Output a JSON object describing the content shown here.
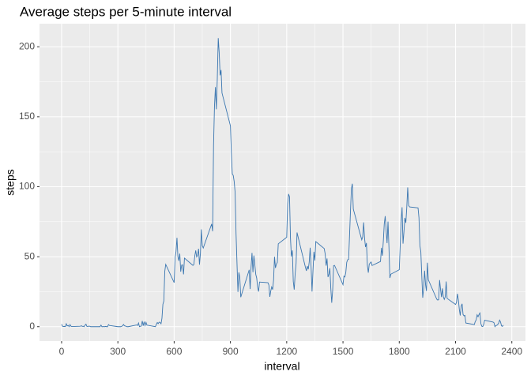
{
  "chart_data": {
    "type": "line",
    "title": "Average steps per 5-minute interval",
    "x_label": "interval",
    "y_label": "steps",
    "x": [
      0,
      5,
      10,
      15,
      20,
      25,
      30,
      35,
      40,
      45,
      50,
      55,
      100,
      105,
      110,
      115,
      120,
      125,
      130,
      135,
      140,
      145,
      150,
      155,
      200,
      205,
      210,
      215,
      220,
      225,
      230,
      235,
      240,
      245,
      250,
      255,
      300,
      305,
      310,
      315,
      320,
      325,
      330,
      335,
      340,
      345,
      350,
      355,
      400,
      405,
      410,
      415,
      420,
      425,
      430,
      435,
      440,
      445,
      450,
      455,
      500,
      505,
      510,
      515,
      520,
      525,
      530,
      535,
      540,
      545,
      550,
      555,
      600,
      605,
      610,
      615,
      620,
      625,
      630,
      635,
      640,
      645,
      650,
      655,
      700,
      705,
      710,
      715,
      720,
      725,
      730,
      735,
      740,
      745,
      750,
      755,
      800,
      805,
      810,
      815,
      820,
      825,
      830,
      835,
      840,
      845,
      850,
      855,
      900,
      905,
      910,
      915,
      920,
      925,
      930,
      935,
      940,
      945,
      950,
      955,
      1000,
      1005,
      1010,
      1015,
      1020,
      1025,
      1030,
      1035,
      1040,
      1045,
      1050,
      1055,
      1100,
      1105,
      1110,
      1115,
      1120,
      1125,
      1130,
      1135,
      1140,
      1145,
      1150,
      1155,
      1200,
      1205,
      1210,
      1215,
      1220,
      1225,
      1230,
      1235,
      1240,
      1245,
      1250,
      1255,
      1300,
      1305,
      1310,
      1315,
      1320,
      1325,
      1330,
      1335,
      1340,
      1345,
      1350,
      1355,
      1400,
      1405,
      1410,
      1415,
      1420,
      1425,
      1430,
      1435,
      1440,
      1445,
      1450,
      1455,
      1500,
      1505,
      1510,
      1515,
      1520,
      1525,
      1530,
      1535,
      1540,
      1545,
      1550,
      1555,
      1600,
      1605,
      1610,
      1615,
      1620,
      1625,
      1630,
      1635,
      1640,
      1645,
      1650,
      1655,
      1700,
      1705,
      1710,
      1715,
      1720,
      1725,
      1730,
      1735,
      1740,
      1745,
      1750,
      1755,
      1800,
      1805,
      1810,
      1815,
      1820,
      1825,
      1830,
      1835,
      1840,
      1845,
      1850,
      1855,
      1900,
      1905,
      1910,
      1915,
      1920,
      1925,
      1930,
      1935,
      1940,
      1945,
      1950,
      1955,
      2000,
      2005,
      2010,
      2015,
      2020,
      2025,
      2030,
      2035,
      2040,
      2045,
      2050,
      2055,
      2100,
      2105,
      2110,
      2115,
      2120,
      2125,
      2130,
      2135,
      2140,
      2145,
      2150,
      2155,
      2200,
      2205,
      2210,
      2215,
      2220,
      2225,
      2230,
      2235,
      2240,
      2245,
      2250,
      2255,
      2300,
      2305,
      2310,
      2315,
      2320,
      2325,
      2330,
      2335,
      2340,
      2345,
      2350,
      2355
    ],
    "series": [
      {
        "color": "#3a76b0",
        "values": [
          1.7,
          0.3,
          0.1,
          0.2,
          0.1,
          2.1,
          0.5,
          0.9,
          0,
          1.5,
          0.3,
          0.1,
          0.3,
          0.7,
          0.2,
          0.3,
          0,
          1.1,
          1.8,
          0.2,
          0.2,
          0.4,
          0.3,
          0,
          0,
          0,
          1.1,
          0,
          0,
          0.1,
          0,
          0.2,
          0,
          0,
          1.5,
          0.9,
          0,
          0,
          0,
          0,
          0.2,
          0.6,
          1.6,
          0.6,
          0.5,
          0.1,
          0,
          0,
          1.2,
          0.9,
          2.6,
          0,
          0.3,
          0.4,
          4.1,
          0.7,
          3.5,
          0.8,
          3.1,
          1.1,
          0,
          1.6,
          3,
          2.2,
          3.3,
          3,
          2.1,
          6.1,
          16,
          18.3,
          39.5,
          44.5,
          31.5,
          49.3,
          53.8,
          63.5,
          50,
          47.1,
          52.2,
          39.3,
          44,
          44.2,
          37.4,
          49,
          43.8,
          44.4,
          50.5,
          54.5,
          49.9,
          51,
          55.7,
          44.3,
          52.3,
          69.5,
          57.8,
          56.2,
          73.4,
          68.2,
          129.4,
          157.5,
          171.2,
          155.4,
          177.3,
          206.2,
          195.9,
          179.6,
          183.4,
          167,
          143.5,
          124,
          109.1,
          108.1,
          103.7,
          95.9,
          66.2,
          45.2,
          24.8,
          38.8,
          35,
          21.1,
          40.6,
          26.9,
          42.4,
          52.7,
          38.9,
          50.8,
          44.3,
          37.4,
          34.7,
          28.3,
          25.1,
          31.9,
          31.4,
          29.7,
          21.3,
          25.5,
          28.4,
          26.5,
          33.4,
          50,
          42,
          44.6,
          46,
          59.2,
          63.9,
          87.7,
          94.8,
          92.8,
          63.4,
          50.2,
          54.5,
          32.4,
          26.5,
          37.7,
          45.1,
          67.3,
          42.3,
          39.9,
          43.3,
          41,
          46.2,
          56.4,
          42.8,
          25.1,
          40,
          53.5,
          47.3,
          60.8,
          55.8,
          52,
          43.6,
          48.7,
          35.5,
          37.5,
          41.8,
          27.5,
          17.1,
          26.1,
          43.6,
          43.8,
          30,
          36.1,
          35.5,
          38.8,
          46,
          47.8,
          48.1,
          65.3,
          82.9,
          98.7,
          102.1,
          84,
          62.1,
          64.1,
          74.5,
          63.2,
          56.9,
          59.8,
          43.9,
          38.6,
          44.7,
          45.5,
          46.2,
          43.7,
          46.6,
          56.3,
          50.7,
          61.2,
          73.4,
          79,
          68.9,
          59.7,
          75.1,
          56.5,
          34.8,
          37.5,
          40.7,
          58,
          74.7,
          85.3,
          59.3,
          67.8,
          77.7,
          74.2,
          85.3,
          99.5,
          86.6,
          85.6,
          84.9,
          77.8,
          58,
          53.4,
          36.3,
          20.7,
          27.4,
          40,
          30.2,
          25.5,
          45.7,
          33.5,
          19.6,
          19,
          19.3,
          33.3,
          26.8,
          21.2,
          27.3,
          21.3,
          19.5,
          21.3,
          32.3,
          20.2,
          15.9,
          17.2,
          23.5,
          19.2,
          12.5,
          8,
          14.7,
          16.3,
          8.7,
          7.8,
          8.1,
          2.6,
          1.5,
          3.7,
          4.8,
          8.5,
          7.1,
          8.7,
          9.8,
          2.2,
          0.3,
          0.1,
          1.6,
          4.6,
          3.3,
          2.8,
          0,
          0.8,
          1,
          1.6,
          2.6,
          4.7,
          3.3,
          0.6,
          0.2,
          1.1
        ]
      }
    ],
    "xlim": [
      -117.75,
      2472.75
    ],
    "ylim": [
      -10.3,
      216.5
    ],
    "xticks": [
      0,
      300,
      600,
      900,
      1200,
      1500,
      1800,
      2100,
      2400
    ],
    "yticks": [
      0,
      50,
      100,
      150,
      200
    ],
    "grid": true
  }
}
